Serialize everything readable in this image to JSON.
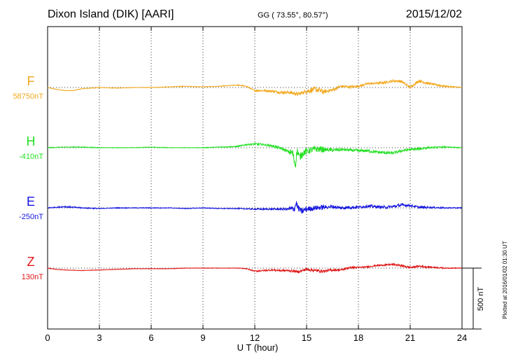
{
  "header": {
    "station": "Dixon Island (DIK)  [AARI]",
    "coords": "GG ( 73.55°,  80.57°)",
    "date": "2015/12/02"
  },
  "scale_bar": {
    "label": "500 nT",
    "value_nT": 500
  },
  "plotted_at": "Plotted at 2016/01/02 01:30 UT",
  "chart_data": {
    "type": "line",
    "xlabel": "U T (hour)",
    "xlim": [
      0,
      24
    ],
    "xticks": [
      0,
      3,
      6,
      9,
      12,
      15,
      18,
      21,
      24
    ],
    "grid": true,
    "units": "nT",
    "series": [
      {
        "name": "F",
        "offset_label": "58750nT",
        "color": "#f2a81d",
        "points": [
          [
            0,
            0
          ],
          [
            0.5,
            -15
          ],
          [
            1,
            -25
          ],
          [
            1.5,
            -25
          ],
          [
            2,
            -10
          ],
          [
            3,
            0
          ],
          [
            4,
            -5
          ],
          [
            5,
            0
          ],
          [
            6,
            0
          ],
          [
            7,
            5
          ],
          [
            8,
            10
          ],
          [
            9,
            5
          ],
          [
            10,
            10
          ],
          [
            11,
            20
          ],
          [
            11.5,
            10
          ],
          [
            12,
            -25
          ],
          [
            12.5,
            -25
          ],
          [
            13,
            -30
          ],
          [
            13.5,
            -40
          ],
          [
            14,
            -40
          ],
          [
            14.5,
            -55
          ],
          [
            15,
            -30
          ],
          [
            15.5,
            -15
          ],
          [
            16,
            -35
          ],
          [
            16.5,
            -20
          ],
          [
            17,
            10
          ],
          [
            17.5,
            5
          ],
          [
            18,
            10
          ],
          [
            18.5,
            30
          ],
          [
            19,
            35
          ],
          [
            19.5,
            40
          ],
          [
            20,
            55
          ],
          [
            20.5,
            50
          ],
          [
            21,
            0
          ],
          [
            21.5,
            55
          ],
          [
            22,
            35
          ],
          [
            23,
            10
          ],
          [
            24,
            0
          ]
        ],
        "noise": [
          2,
          2,
          3,
          2,
          2,
          2,
          2,
          3,
          2,
          2,
          3,
          4,
          8,
          12,
          14,
          22,
          14,
          10,
          8,
          10,
          10,
          12,
          8,
          5,
          3
        ]
      },
      {
        "name": "H",
        "offset_label": "-410nT",
        "color": "#22e022",
        "points": [
          [
            0,
            0
          ],
          [
            1,
            5
          ],
          [
            2,
            5
          ],
          [
            3,
            0
          ],
          [
            4,
            0
          ],
          [
            5,
            0
          ],
          [
            6,
            5
          ],
          [
            7,
            0
          ],
          [
            8,
            0
          ],
          [
            9,
            0
          ],
          [
            10,
            5
          ],
          [
            11,
            10
          ],
          [
            11.5,
            25
          ],
          [
            12,
            30
          ],
          [
            12.5,
            25
          ],
          [
            13,
            15
          ],
          [
            13.5,
            -5
          ],
          [
            14,
            -35
          ],
          [
            14.2,
            -45
          ],
          [
            14.35,
            -150
          ],
          [
            14.45,
            -20
          ],
          [
            14.6,
            -80
          ],
          [
            14.8,
            -40
          ],
          [
            15,
            -30
          ],
          [
            15.5,
            -10
          ],
          [
            16,
            -15
          ],
          [
            16.5,
            -20
          ],
          [
            17,
            -15
          ],
          [
            17.5,
            -20
          ],
          [
            18,
            -25
          ],
          [
            18.5,
            -25
          ],
          [
            19,
            -35
          ],
          [
            19.5,
            -40
          ],
          [
            20,
            -45
          ],
          [
            20.5,
            -25
          ],
          [
            21,
            -15
          ],
          [
            21.5,
            -10
          ],
          [
            22,
            0
          ],
          [
            23,
            5
          ],
          [
            24,
            0
          ]
        ],
        "noise": [
          3,
          3,
          3,
          2,
          2,
          2,
          3,
          2,
          2,
          3,
          4,
          6,
          8,
          12,
          30,
          26,
          14,
          12,
          12,
          12,
          12,
          10,
          6,
          4,
          3
        ]
      },
      {
        "name": "E",
        "offset_label": "-250nT",
        "color": "#1515e0",
        "points": [
          [
            0,
            0
          ],
          [
            0.5,
            5
          ],
          [
            1,
            10
          ],
          [
            1.5,
            5
          ],
          [
            2,
            0
          ],
          [
            3,
            -5
          ],
          [
            4,
            0
          ],
          [
            5,
            0
          ],
          [
            6,
            0
          ],
          [
            7,
            0
          ],
          [
            8,
            -5
          ],
          [
            9,
            0
          ],
          [
            10,
            -5
          ],
          [
            11,
            -5
          ],
          [
            12,
            -10
          ],
          [
            13,
            -10
          ],
          [
            14,
            -10
          ],
          [
            14.3,
            -5
          ],
          [
            14.4,
            45
          ],
          [
            14.5,
            0
          ],
          [
            14.7,
            -30
          ],
          [
            15,
            -10
          ],
          [
            15.5,
            0
          ],
          [
            16,
            5
          ],
          [
            16.5,
            10
          ],
          [
            17,
            0
          ],
          [
            17.5,
            5
          ],
          [
            18,
            5
          ],
          [
            18.5,
            15
          ],
          [
            19,
            10
          ],
          [
            19.5,
            5
          ],
          [
            20,
            10
          ],
          [
            20.5,
            25
          ],
          [
            21,
            20
          ],
          [
            21.5,
            5
          ],
          [
            22,
            5
          ],
          [
            23,
            0
          ],
          [
            24,
            0
          ]
        ],
        "noise": [
          4,
          5,
          4,
          3,
          3,
          3,
          3,
          3,
          3,
          3,
          3,
          4,
          6,
          8,
          25,
          20,
          14,
          14,
          12,
          12,
          12,
          10,
          6,
          4,
          3
        ]
      },
      {
        "name": "Z",
        "offset_label": "130nT",
        "color": "#e01515",
        "points": [
          [
            0,
            0
          ],
          [
            0.5,
            -10
          ],
          [
            1,
            -15
          ],
          [
            2,
            -20
          ],
          [
            3,
            -15
          ],
          [
            4,
            -10
          ],
          [
            5,
            -5
          ],
          [
            6,
            -5
          ],
          [
            7,
            -5
          ],
          [
            8,
            0
          ],
          [
            9,
            0
          ],
          [
            10,
            0
          ],
          [
            11,
            0
          ],
          [
            11.5,
            -5
          ],
          [
            12,
            -25
          ],
          [
            12.5,
            -20
          ],
          [
            13,
            -15
          ],
          [
            13.5,
            -20
          ],
          [
            14,
            -20
          ],
          [
            14.5,
            -30
          ],
          [
            15,
            -10
          ],
          [
            15.5,
            -20
          ],
          [
            16,
            -25
          ],
          [
            16.5,
            -15
          ],
          [
            17,
            -15
          ],
          [
            17.5,
            5
          ],
          [
            18,
            5
          ],
          [
            18.5,
            10
          ],
          [
            19,
            20
          ],
          [
            19.5,
            25
          ],
          [
            20,
            30
          ],
          [
            20.5,
            20
          ],
          [
            21,
            5
          ],
          [
            21.5,
            15
          ],
          [
            22,
            10
          ],
          [
            23,
            0
          ],
          [
            24,
            0
          ]
        ],
        "noise": [
          2,
          2,
          2,
          2,
          2,
          2,
          2,
          2,
          2,
          2,
          2,
          3,
          6,
          8,
          10,
          12,
          10,
          8,
          6,
          6,
          8,
          8,
          5,
          3,
          2
        ]
      }
    ]
  }
}
